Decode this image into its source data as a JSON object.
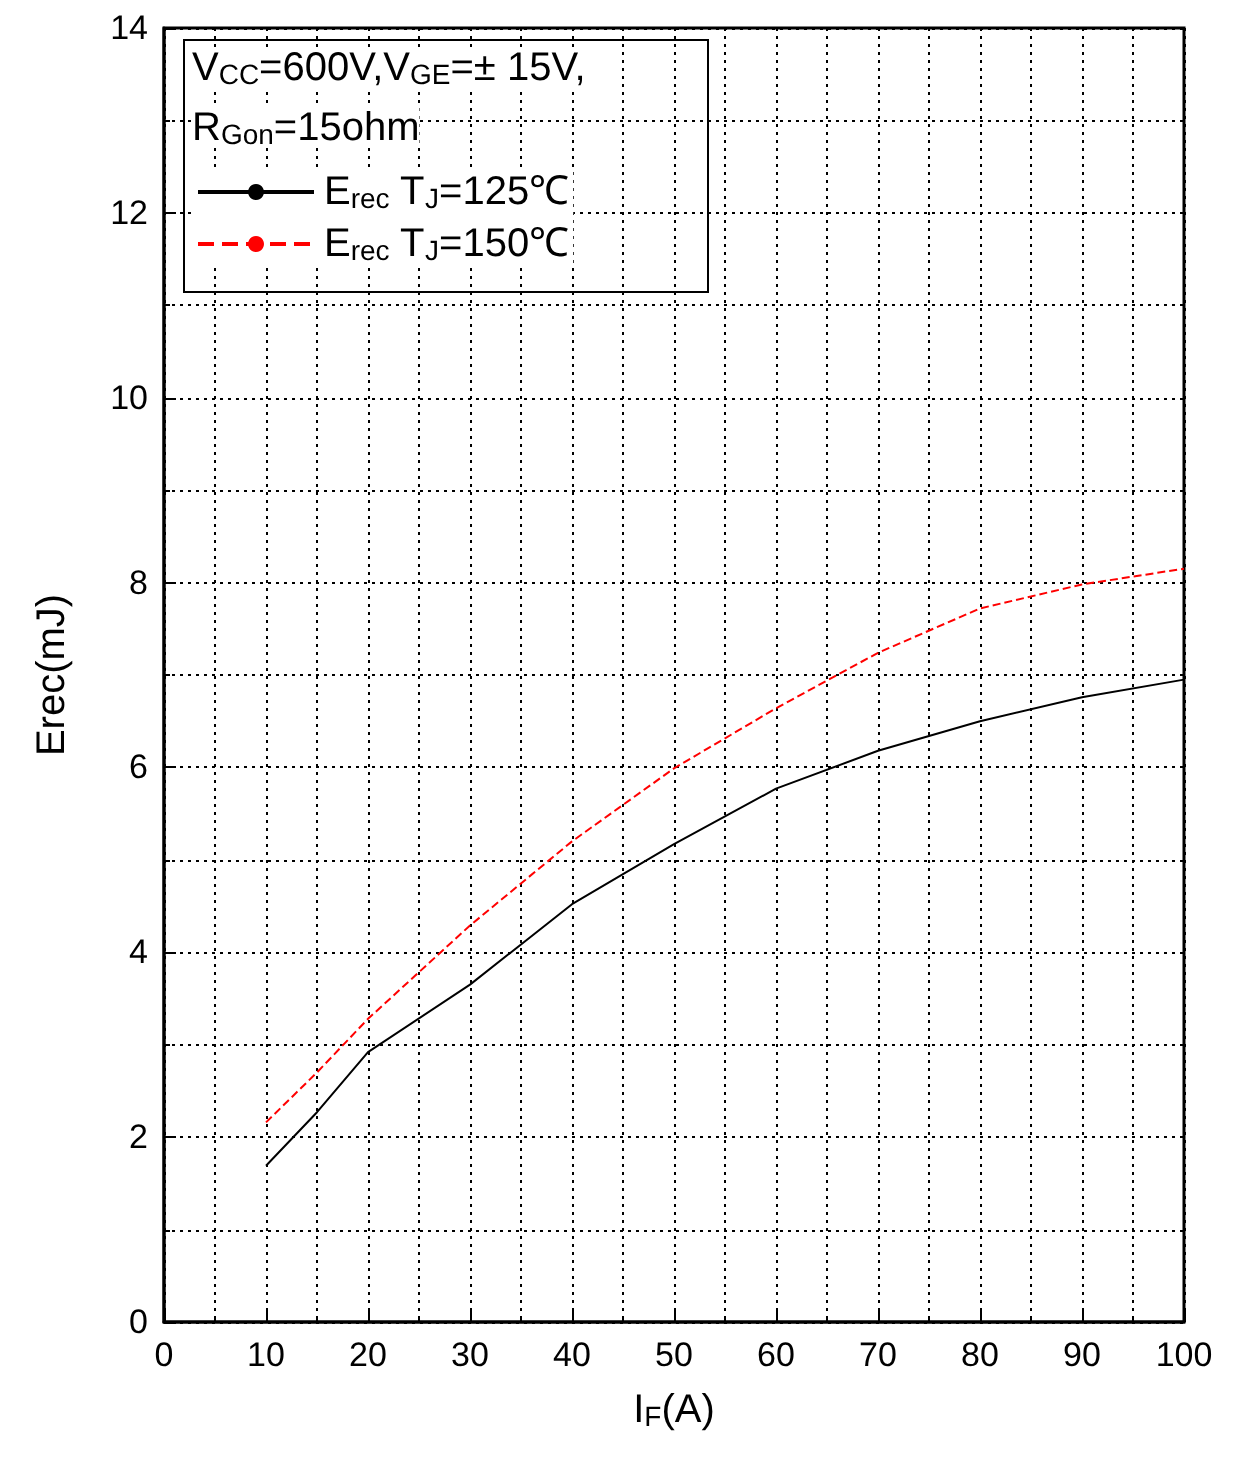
{
  "chart_data": {
    "type": "line",
    "xlabel": "I$_{F}$(A)",
    "ylabel": "Erec(mJ)",
    "legend_title": "V$_{CC}$=600V,V$_{GE}$=± 15V,\nR$_{Gon}$=15ohm",
    "x": [
      10,
      15,
      20,
      30,
      40,
      50,
      60,
      70,
      80,
      90,
      100
    ],
    "series": [
      {
        "name": "E$_{rec}$ T$_{J}$=125℃",
        "color": "#000000",
        "line_style": "solid",
        "values": [
          1.69,
          2.27,
          2.92,
          3.65,
          4.52,
          5.17,
          5.77,
          6.18,
          6.5,
          6.76,
          6.95
        ]
      },
      {
        "name": "E$_{rec}$ T$_{J}$=150℃",
        "color": "#ff0000",
        "line_style": "dashed",
        "values": [
          2.16,
          2.7,
          3.28,
          4.29,
          5.2,
          5.99,
          6.64,
          7.24,
          7.72,
          7.98,
          8.15
        ]
      }
    ],
    "xlim": [
      0,
      100
    ],
    "xticks": [
      0,
      10,
      20,
      30,
      40,
      50,
      60,
      70,
      80,
      90,
      100
    ],
    "ylim": [
      0,
      14
    ],
    "yticks": [
      0,
      2,
      4,
      6,
      8,
      10,
      12,
      14
    ],
    "grid": true,
    "legend": "top left",
    "marker": "none"
  }
}
